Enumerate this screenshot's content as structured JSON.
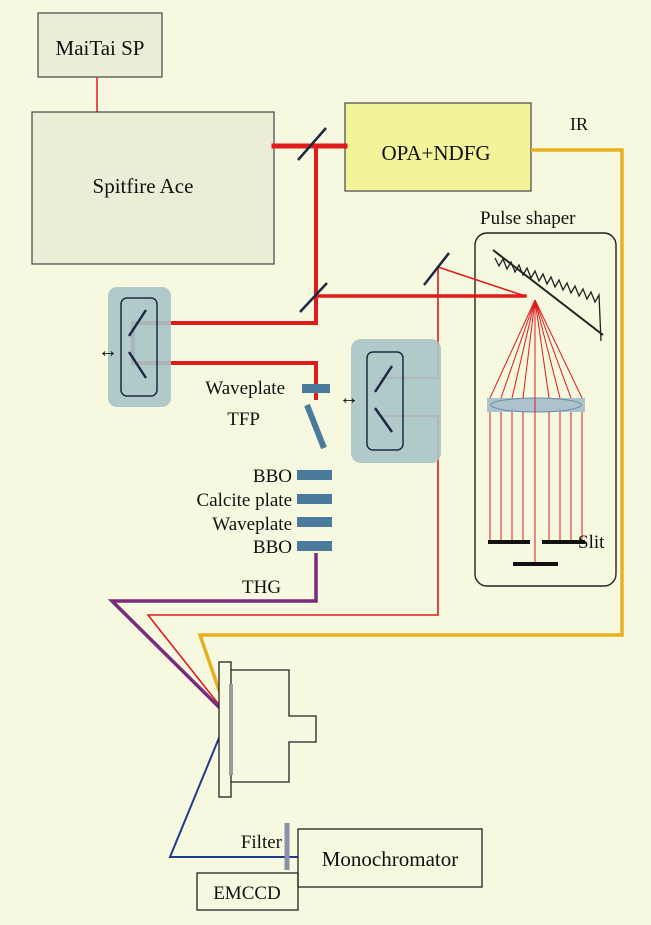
{
  "diagram": {
    "boxes": {
      "maitai": "MaiTai SP",
      "spitfire": "Spitfire Ace",
      "opa": "OPA+NDFG",
      "monochromator": "Monochromator",
      "emccd": "EMCCD"
    },
    "labels": {
      "ir": "IR",
      "pulse_shaper": "Pulse shaper",
      "waveplate_top": "Waveplate",
      "tfp": "TFP",
      "bbo_1": "BBO",
      "calcite": "Calcite plate",
      "waveplate_bottom": "Waveplate",
      "bbo_2": "BBO",
      "thg": "THG",
      "slit": "Slit",
      "filter": "Filter",
      "arrow_left": "↔",
      "arrow_right": "↔"
    },
    "colors": {
      "background": "#f6f8e0",
      "red_beam": "#e01b1b",
      "ir_beam": "#e8b020",
      "thg_beam": "#7a2a7a",
      "blue_beam": "#1f3c8c",
      "opa_fill": "#f3f39a",
      "box_fill": "#ecedd6",
      "stage_fill": "#a9c4c6",
      "optic": "#4a7a9c",
      "mirror": "#1c2a44"
    }
  }
}
